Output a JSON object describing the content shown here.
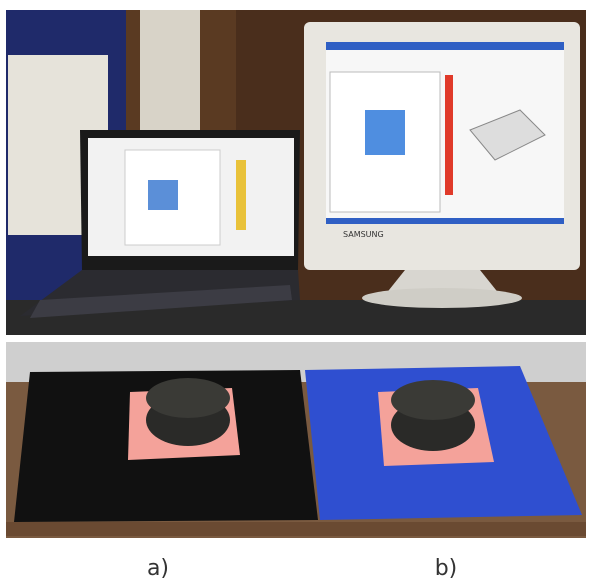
{
  "panels": [
    {
      "label": "a)"
    },
    {
      "label": "b)"
    }
  ],
  "monitor_brand": "SAMSUNG"
}
